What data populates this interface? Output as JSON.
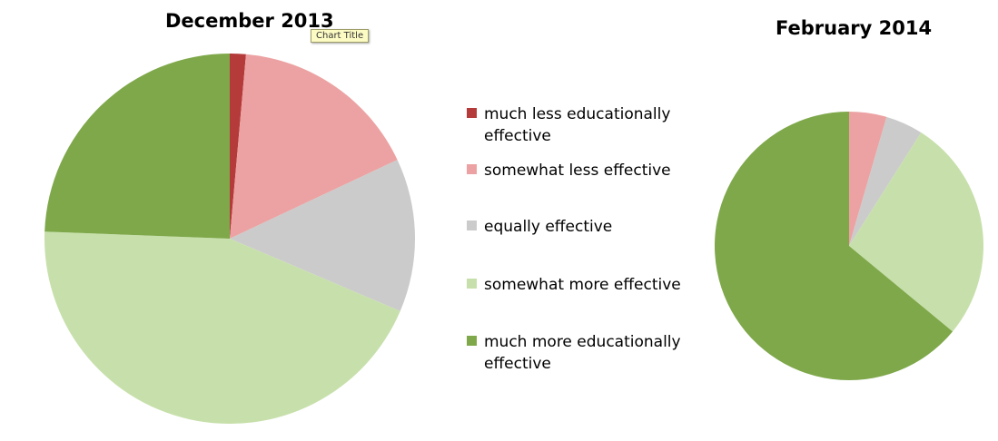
{
  "tooltip": "Chart Title",
  "legend": [
    {
      "label": "much less educationally effective",
      "color": "#b53a3a"
    },
    {
      "label": "somewhat less effective",
      "color": "#eca2a2"
    },
    {
      "label": "equally effective",
      "color": "#cbcbcb"
    },
    {
      "label": "somewhat more effective",
      "color": "#c7e0ab"
    },
    {
      "label": "much more educationally effective",
      "color": "#7ea84a"
    }
  ],
  "chart_data": [
    {
      "type": "pie",
      "title": "December 2013",
      "categories": [
        "much less educationally effective",
        "somewhat less effective",
        "equally effective",
        "somewhat more effective",
        "much more educationally effective"
      ],
      "values": [
        1.4,
        16.6,
        13.4,
        44.2,
        24.4
      ],
      "colors": [
        "#b53a3a",
        "#eca2a2",
        "#cbcbcb",
        "#c7e0ab",
        "#7ea84a"
      ],
      "start": "12 o'clock, clockwise",
      "legend": "shared, between charts"
    },
    {
      "type": "pie",
      "title": "February 2014",
      "categories": [
        "much less educationally effective",
        "somewhat less effective",
        "equally effective",
        "somewhat more effective",
        "much more educationally effective"
      ],
      "values": [
        0,
        4.5,
        4.5,
        27,
        64
      ],
      "colors": [
        "#b53a3a",
        "#eca2a2",
        "#cbcbcb",
        "#c7e0ab",
        "#7ea84a"
      ],
      "start": "12 o'clock, clockwise",
      "legend": "shared, between charts"
    }
  ]
}
